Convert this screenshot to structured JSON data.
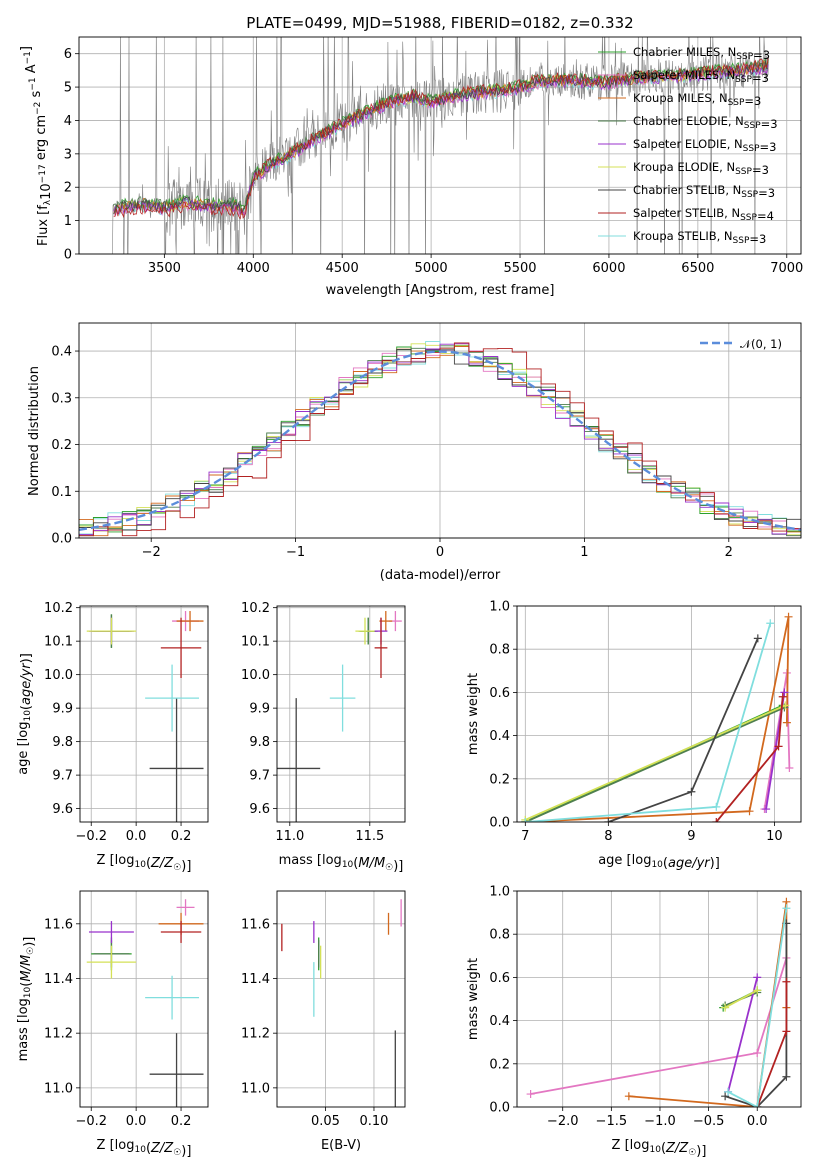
{
  "figure": {
    "title": "PLATE=0499, MJD=51988, FIBERID=0182, z=0.332",
    "colors": {
      "Chabrier MILES": "#2ca02c",
      "Salpeter MILES": "#e377c2",
      "Kroupa MILES": "#d2691e",
      "Chabrier ELODIE": "#4f7f4f",
      "Salpeter ELODIE": "#9932cc",
      "Kroupa ELODIE": "#d4e157",
      "Chabrier STELIB": "#444444",
      "Salpeter STELIB": "#b22222",
      "Kroupa STELIB": "#80dede",
      "data": "#808080",
      "normal": "#5b8ddb"
    }
  },
  "chart_data": [
    {
      "id": "spectrum",
      "type": "line",
      "xlabel": "wavelength [Angstrom, rest frame]",
      "ylabel": "Flux [f_λ 10^-17 erg cm^-2 s^-1 A^-1]",
      "xlim": [
        3020,
        7080
      ],
      "ylim": [
        0,
        6.5
      ],
      "xticks": [
        3500,
        4000,
        4500,
        5000,
        5500,
        6000,
        6500,
        7000
      ],
      "yticks": [
        0,
        1,
        2,
        3,
        4,
        5,
        6
      ],
      "legend_position": "right",
      "legend": [
        {
          "name": "Chabrier MILES",
          "nssp": "3"
        },
        {
          "name": "Salpeter MILES",
          "nssp": "3"
        },
        {
          "name": "Kroupa MILES",
          "nssp": "3"
        },
        {
          "name": "Chabrier ELODIE",
          "nssp": "3"
        },
        {
          "name": "Salpeter ELODIE",
          "nssp": "3"
        },
        {
          "name": "Kroupa ELODIE",
          "nssp": "3"
        },
        {
          "name": "Chabrier STELIB",
          "nssp": "3"
        },
        {
          "name": "Salpeter STELIB",
          "nssp": "4"
        },
        {
          "name": "Kroupa STELIB",
          "nssp": "3"
        }
      ],
      "continuum": {
        "x": [
          3200,
          3300,
          3400,
          3500,
          3600,
          3700,
          3800,
          3900,
          3950,
          4000,
          4100,
          4200,
          4300,
          4400,
          4500,
          4600,
          4700,
          4800,
          4900,
          5000,
          5100,
          5200,
          5300,
          5400,
          5500,
          5600,
          5700,
          5800,
          5900,
          6000,
          6200,
          6400,
          6600,
          6800,
          6900
        ],
        "y": [
          1.35,
          1.45,
          1.5,
          1.4,
          1.55,
          1.5,
          1.45,
          1.45,
          1.3,
          2.3,
          2.7,
          2.95,
          3.3,
          3.6,
          3.9,
          4.15,
          4.4,
          4.6,
          4.7,
          4.55,
          4.7,
          4.8,
          4.85,
          4.9,
          5.0,
          5.15,
          5.2,
          5.2,
          5.15,
          5.15,
          5.3,
          5.35,
          5.45,
          5.55,
          5.65
        ]
      }
    },
    {
      "id": "residuals",
      "type": "histogram",
      "xlabel": "(data-model)/error",
      "ylabel": "Normed distribution",
      "xlim": [
        -2.5,
        2.5
      ],
      "ylim": [
        0,
        0.46
      ],
      "xticks": [
        -2,
        -1,
        0,
        1,
        2
      ],
      "yticks": [
        0.0,
        0.1,
        0.2,
        0.3,
        0.4
      ],
      "legend_position": "upper right",
      "legend": [
        {
          "name": "𝒩(0, 1)"
        }
      ],
      "bin_width": 0.1
    },
    {
      "id": "age_vs_Z",
      "type": "errorbar",
      "xlabel": "Z [log10(Z/Z☉)]",
      "ylabel": "age [log10(age/yr)]",
      "xlim": [
        -0.25,
        0.32
      ],
      "ylim": [
        9.56,
        10.205
      ],
      "xticks": [
        -0.2,
        0.0,
        0.2
      ],
      "yticks": [
        9.6,
        9.7,
        9.8,
        9.9,
        10.0,
        10.1,
        10.2
      ],
      "points": [
        {
          "m": "Chabrier MILES",
          "x": -0.11,
          "xerr": 0.09,
          "y": 10.13,
          "yerr": 0.05
        },
        {
          "m": "Salpeter MILES",
          "x": 0.22,
          "xerr": 0.06,
          "y": 10.16,
          "yerr": 0.03
        },
        {
          "m": "Kroupa MILES",
          "x": 0.24,
          "xerr": 0.06,
          "y": 10.16,
          "yerr": 0.03
        },
        {
          "m": "Chabrier ELODIE",
          "x": -0.11,
          "xerr": 0.08,
          "y": 10.13,
          "yerr": 0.05
        },
        {
          "m": "Salpeter ELODIE",
          "x": -0.11,
          "xerr": 0.1,
          "y": 10.13,
          "yerr": 0.04
        },
        {
          "m": "Kroupa ELODIE",
          "x": -0.11,
          "xerr": 0.11,
          "y": 10.13,
          "yerr": 0.04
        },
        {
          "m": "Chabrier STELIB",
          "x": 0.18,
          "xerr": 0.12,
          "y": 9.72,
          "yerr": 0.21
        },
        {
          "m": "Salpeter STELIB",
          "x": 0.2,
          "xerr": 0.09,
          "y": 10.08,
          "yerr": 0.09
        },
        {
          "m": "Kroupa STELIB",
          "x": 0.16,
          "xerr": 0.12,
          "y": 9.93,
          "yerr": 0.1
        }
      ]
    },
    {
      "id": "age_vs_mass",
      "type": "errorbar",
      "xlabel": "mass [log10(M/M☉)]",
      "ylabel": "",
      "xlim": [
        10.92,
        11.72
      ],
      "ylim": [
        9.56,
        10.205
      ],
      "xticks": [
        11.0,
        11.5
      ],
      "yticks": [
        9.6,
        9.7,
        9.8,
        9.9,
        10.0,
        10.1,
        10.2
      ],
      "points": [
        {
          "m": "Chabrier MILES",
          "x": 11.49,
          "xerr": 0.06,
          "y": 10.13,
          "yerr": 0.04
        },
        {
          "m": "Salpeter MILES",
          "x": 11.66,
          "xerr": 0.04,
          "y": 10.16,
          "yerr": 0.03
        },
        {
          "m": "Kroupa MILES",
          "x": 11.6,
          "xerr": 0.04,
          "y": 10.16,
          "yerr": 0.03
        },
        {
          "m": "Chabrier ELODIE",
          "x": 11.49,
          "xerr": 0.05,
          "y": 10.13,
          "yerr": 0.04
        },
        {
          "m": "Salpeter ELODIE",
          "x": 11.57,
          "xerr": 0.04,
          "y": 10.13,
          "yerr": 0.04
        },
        {
          "m": "Kroupa ELODIE",
          "x": 11.47,
          "xerr": 0.06,
          "y": 10.13,
          "yerr": 0.04
        },
        {
          "m": "Chabrier STELIB",
          "x": 11.04,
          "xerr": 0.15,
          "y": 9.72,
          "yerr": 0.21
        },
        {
          "m": "Salpeter STELIB",
          "x": 11.57,
          "xerr": 0.04,
          "y": 10.08,
          "yerr": 0.09
        },
        {
          "m": "Kroupa STELIB",
          "x": 11.33,
          "xerr": 0.08,
          "y": 9.93,
          "yerr": 0.1
        }
      ]
    },
    {
      "id": "massweight_vs_age",
      "type": "line",
      "xlabel": "age [log10(age/yr)]",
      "ylabel": "mass weight",
      "xlim": [
        6.9,
        10.32
      ],
      "ylim": [
        0,
        1
      ],
      "xticks": [
        7,
        8,
        9,
        10
      ],
      "yticks": [
        0.0,
        0.2,
        0.4,
        0.6,
        0.8,
        1.0
      ],
      "series": [
        {
          "m": "Chabrier MILES",
          "x": [
            7.0,
            10.1
          ],
          "y": [
            0.0,
            0.54
          ]
        },
        {
          "m": "Salpeter MILES",
          "x": [
            9.88,
            10.15,
            10.18
          ],
          "y": [
            0.06,
            0.69,
            0.25
          ]
        },
        {
          "m": "Kroupa MILES",
          "x": [
            7.0,
            9.7,
            10.17,
            10.15
          ],
          "y": [
            0.0,
            0.05,
            0.95,
            0.46
          ]
        },
        {
          "m": "Chabrier ELODIE",
          "x": [
            7.0,
            10.12
          ],
          "y": [
            0.0,
            0.53
          ]
        },
        {
          "m": "Salpeter ELODIE",
          "x": [
            9.9,
            10.12
          ],
          "y": [
            0.06,
            0.6
          ]
        },
        {
          "m": "Kroupa ELODIE",
          "x": [
            7.0,
            10.13
          ],
          "y": [
            0.01,
            0.54
          ]
        },
        {
          "m": "Chabrier STELIB",
          "x": [
            8.0,
            9.0,
            9.8
          ],
          "y": [
            0.0,
            0.14,
            0.85
          ]
        },
        {
          "m": "Salpeter STELIB",
          "x": [
            9.3,
            10.05,
            10.1
          ],
          "y": [
            0.0,
            0.35,
            0.58
          ]
        },
        {
          "m": "Kroupa STELIB",
          "x": [
            7.0,
            9.3,
            9.95
          ],
          "y": [
            0.0,
            0.07,
            0.92
          ]
        }
      ]
    },
    {
      "id": "mass_vs_Z",
      "type": "errorbar",
      "xlabel": "Z [log10(Z/Z☉)]",
      "ylabel": "mass [log10(M/M☉)]",
      "xlim": [
        -0.25,
        0.32
      ],
      "ylim": [
        10.93,
        11.72
      ],
      "xticks": [
        -0.2,
        0.0,
        0.2
      ],
      "yticks": [
        11.0,
        11.2,
        11.4,
        11.6
      ],
      "points": [
        {
          "m": "Chabrier MILES",
          "x": -0.11,
          "xerr": 0.09,
          "y": 11.49,
          "yerr": 0.06
        },
        {
          "m": "Salpeter MILES",
          "x": 0.22,
          "xerr": 0.04,
          "y": 11.66,
          "yerr": 0.03
        },
        {
          "m": "Kroupa MILES",
          "x": 0.2,
          "xerr": 0.1,
          "y": 11.6,
          "yerr": 0.04
        },
        {
          "m": "Chabrier ELODIE",
          "x": -0.11,
          "xerr": 0.08,
          "y": 11.49,
          "yerr": 0.05
        },
        {
          "m": "Salpeter ELODIE",
          "x": -0.11,
          "xerr": 0.1,
          "y": 11.57,
          "yerr": 0.04
        },
        {
          "m": "Kroupa ELODIE",
          "x": -0.11,
          "xerr": 0.11,
          "y": 11.46,
          "yerr": 0.06
        },
        {
          "m": "Chabrier STELIB",
          "x": 0.18,
          "xerr": 0.12,
          "y": 11.05,
          "yerr": 0.15
        },
        {
          "m": "Salpeter STELIB",
          "x": 0.2,
          "xerr": 0.09,
          "y": 11.57,
          "yerr": 0.04
        },
        {
          "m": "Kroupa STELIB",
          "x": 0.16,
          "xerr": 0.12,
          "y": 11.33,
          "yerr": 0.08
        }
      ]
    },
    {
      "id": "mass_vs_ebv",
      "type": "errorbar",
      "xlabel": "E(B-V)",
      "ylabel": "",
      "xlim": [
        0.0,
        0.132
      ],
      "ylim": [
        10.93,
        11.72
      ],
      "xticks": [
        0.05,
        0.1
      ],
      "xticklabels": [
        "0.05",
        "0.10"
      ],
      "yticks": [
        11.0,
        11.2,
        11.4,
        11.6
      ],
      "points": [
        {
          "m": "Chabrier MILES",
          "x": 0.043,
          "y": 11.49,
          "yerr": 0.06
        },
        {
          "m": "Salpeter MILES",
          "x": 0.128,
          "y": 11.64,
          "yerr": 0.05
        },
        {
          "m": "Kroupa MILES",
          "x": 0.115,
          "y": 11.6,
          "yerr": 0.04
        },
        {
          "m": "Chabrier ELODIE",
          "x": 0.043,
          "y": 11.49,
          "yerr": 0.05
        },
        {
          "m": "Salpeter ELODIE",
          "x": 0.038,
          "y": 11.57,
          "yerr": 0.04
        },
        {
          "m": "Kroupa ELODIE",
          "x": 0.045,
          "y": 11.46,
          "yerr": 0.06
        },
        {
          "m": "Chabrier STELIB",
          "x": 0.122,
          "y": 11.05,
          "yerr": 0.16
        },
        {
          "m": "Salpeter STELIB",
          "x": 0.005,
          "y": 11.55,
          "yerr": 0.05
        },
        {
          "m": "Kroupa STELIB",
          "x": 0.038,
          "y": 11.36,
          "yerr": 0.1
        }
      ]
    },
    {
      "id": "massweight_vs_Z",
      "type": "line",
      "xlabel": "Z [log10(Z/Z☉)]",
      "ylabel": "mass weight",
      "xlim": [
        -2.47,
        0.45
      ],
      "ylim": [
        0,
        1
      ],
      "xticks": [
        -2.0,
        -1.5,
        -1.0,
        -0.5,
        0.0
      ],
      "yticks": [
        0.0,
        0.2,
        0.4,
        0.6,
        0.8,
        1.0
      ],
      "series": [
        {
          "m": "Chabrier MILES",
          "x": [
            -0.35,
            0.0
          ],
          "y": [
            0.46,
            0.54
          ]
        },
        {
          "m": "Salpeter MILES",
          "x": [
            -2.33,
            0.0,
            0.3
          ],
          "y": [
            0.06,
            0.25,
            0.69
          ]
        },
        {
          "m": "Kroupa MILES",
          "x": [
            -1.32,
            0.0,
            0.3,
            0.3
          ],
          "y": [
            0.05,
            0.0,
            0.95,
            0.46
          ]
        },
        {
          "m": "Chabrier ELODIE",
          "x": [
            -0.33,
            0.0
          ],
          "y": [
            0.47,
            0.53
          ]
        },
        {
          "m": "Salpeter ELODIE",
          "x": [
            -0.3,
            0.0
          ],
          "y": [
            0.07,
            0.6
          ]
        },
        {
          "m": "Kroupa ELODIE",
          "x": [
            -0.33,
            0.0
          ],
          "y": [
            0.46,
            0.54
          ]
        },
        {
          "m": "Chabrier STELIB",
          "x": [
            -0.33,
            0.0,
            0.3,
            0.3
          ],
          "y": [
            0.05,
            0.0,
            0.14,
            0.85
          ]
        },
        {
          "m": "Salpeter STELIB",
          "x": [
            0.0,
            0.3,
            0.3
          ],
          "y": [
            0.0,
            0.35,
            0.58
          ]
        },
        {
          "m": "Kroupa STELIB",
          "x": [
            -0.3,
            0.0,
            0.3
          ],
          "y": [
            0.07,
            0.0,
            0.92
          ]
        }
      ]
    }
  ]
}
